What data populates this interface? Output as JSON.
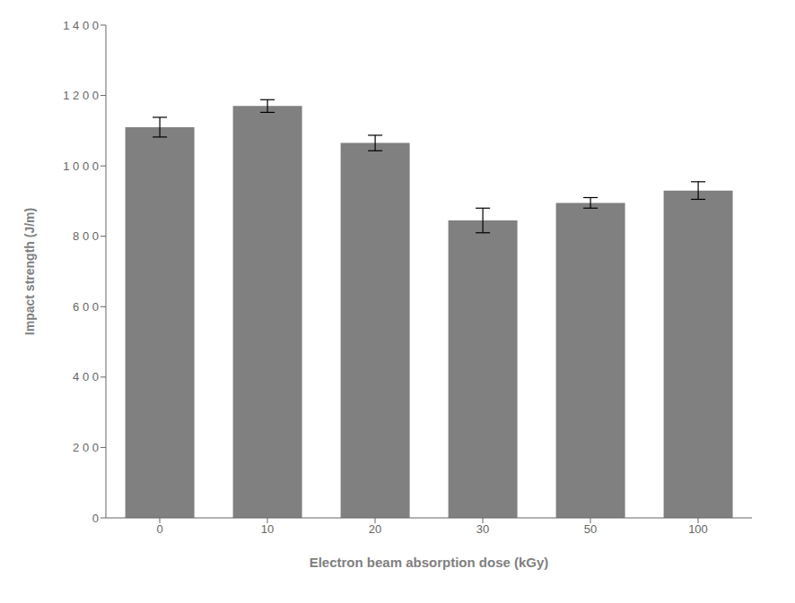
{
  "chart_data": {
    "type": "bar",
    "xlabel": "Electron beam absorption dose (kGy)",
    "ylabel": "Impact strength (J/m)",
    "categories": [
      "0",
      "10",
      "20",
      "30",
      "50",
      "100"
    ],
    "values": [
      1110,
      1170,
      1065,
      845,
      895,
      930
    ],
    "errors": [
      28,
      18,
      22,
      35,
      15,
      25
    ],
    "color": "#808080",
    "ylim": [
      0,
      1400
    ],
    "yticks": [
      0,
      {
        "value": 200,
        "label": "2 0 0"
      },
      {
        "value": 400,
        "label": "4 0 0"
      },
      {
        "value": 600,
        "label": "6 0 0"
      },
      {
        "value": 800,
        "label": "8 0 0"
      },
      {
        "value": 1000,
        "label": "1 0 0 0"
      },
      {
        "value": 1200,
        "label": "1 2 0 0"
      },
      {
        "value": 1400,
        "label": "1 4 0 0"
      }
    ],
    "grid": false
  }
}
